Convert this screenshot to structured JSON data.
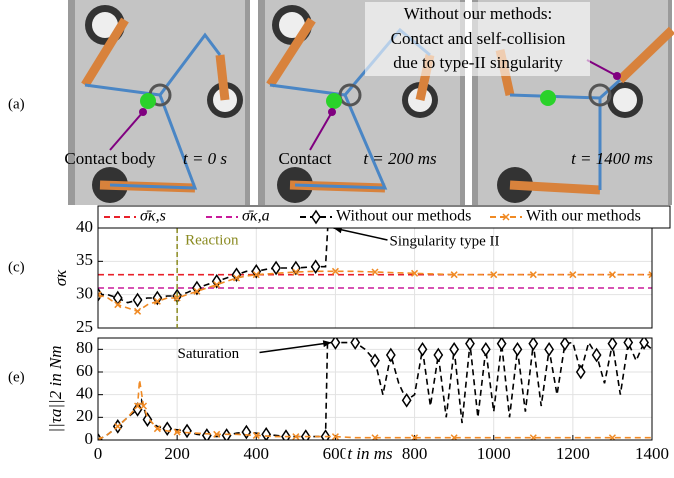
{
  "panel_labels": [
    "(a)",
    "(c)",
    "(e)"
  ],
  "photos": [
    {
      "caption": "Contact body",
      "time": "t = 0 s"
    },
    {
      "caption": "Contact",
      "time": "t = 200 ms"
    },
    {
      "caption_lines": [
        "Without our methods:",
        "Contact and self-collision",
        "due to type-II singularity"
      ],
      "time": "t = 1400 ms"
    }
  ],
  "chart_data": [
    {
      "type": "line",
      "ylabel": "σκ",
      "xlim": [
        0,
        1400
      ],
      "ylim": [
        25,
        40
      ],
      "yticks": [
        25,
        30,
        35,
        40
      ],
      "grid": true,
      "legend": "top",
      "annotations": [
        {
          "text": "Reaction",
          "x": 200
        },
        {
          "text": "Singularity type II",
          "x": 585,
          "y": 40
        }
      ],
      "series": [
        {
          "name": "σ̄κ,s",
          "color": "#e8202a",
          "style": "dashed",
          "x": [
            0,
            1400
          ],
          "values": [
            33,
            33
          ]
        },
        {
          "name": "σ̄κ,a",
          "color": "#c81a9a",
          "style": "dashed",
          "x": [
            0,
            1400
          ],
          "values": [
            31,
            31
          ]
        },
        {
          "name": "Without our methods",
          "color": "#000000",
          "style": "dashed",
          "marker": "diamond",
          "x": [
            0,
            25,
            50,
            75,
            100,
            125,
            150,
            175,
            200,
            225,
            250,
            275,
            300,
            325,
            350,
            375,
            400,
            425,
            450,
            475,
            500,
            525,
            550,
            575,
            590
          ],
          "values": [
            30,
            30,
            29.5,
            28.8,
            29.2,
            29.5,
            29.5,
            29.8,
            29.8,
            30.3,
            31,
            31.5,
            32,
            32.5,
            33,
            33.5,
            33.5,
            33.8,
            34,
            34,
            34,
            34.1,
            34.2,
            34.2,
            50
          ]
        },
        {
          "name": "With our methods",
          "color": "#f08a24",
          "style": "dashed",
          "marker": "x",
          "x": [
            0,
            25,
            50,
            75,
            100,
            125,
            150,
            175,
            200,
            225,
            250,
            275,
            300,
            325,
            350,
            375,
            400,
            450,
            500,
            550,
            600,
            650,
            700,
            750,
            800,
            850,
            900,
            950,
            1000,
            1050,
            1100,
            1150,
            1200,
            1250,
            1300,
            1350,
            1400
          ],
          "values": [
            30,
            29.5,
            28.5,
            28,
            27.5,
            28.5,
            29,
            29.5,
            29.5,
            30,
            30.5,
            31,
            31.5,
            32,
            32.5,
            32.8,
            33,
            33.2,
            33.4,
            33.5,
            33.5,
            33.5,
            33.4,
            33.3,
            33.2,
            33.1,
            33,
            33,
            33,
            33,
            33,
            33,
            33,
            33,
            33,
            33,
            33
          ]
        }
      ]
    },
    {
      "type": "line",
      "ylabel": "||τa||2 in Nm",
      "xlabel": "t in ms",
      "xlim": [
        0,
        1400
      ],
      "ylim": [
        0,
        90
      ],
      "xticks": [
        0,
        200,
        400,
        600,
        800,
        1000,
        1200,
        1400
      ],
      "yticks": [
        0,
        20,
        40,
        60,
        80
      ],
      "grid": true,
      "annotations": [
        {
          "text": "Saturation",
          "x": 580,
          "y": 86
        }
      ],
      "series": [
        {
          "color": "#000000",
          "style": "dashed",
          "marker": "diamond",
          "x": [
            0,
            25,
            50,
            75,
            100,
            110,
            125,
            150,
            175,
            200,
            225,
            250,
            275,
            300,
            325,
            350,
            375,
            400,
            425,
            450,
            475,
            500,
            525,
            550,
            575,
            580,
            600,
            625,
            650,
            675,
            700,
            720,
            740,
            760,
            780,
            800,
            820,
            840,
            860,
            880,
            900,
            920,
            940,
            960,
            980,
            1000,
            1020,
            1040,
            1060,
            1080,
            1100,
            1120,
            1140,
            1160,
            1180,
            1200,
            1220,
            1240,
            1260,
            1280,
            1300,
            1320,
            1340,
            1360,
            1380,
            1400
          ],
          "values": [
            0,
            5,
            12,
            20,
            27,
            35,
            18,
            12,
            10,
            9,
            8,
            5,
            4,
            3,
            4,
            6,
            7,
            6,
            5,
            4,
            3,
            3,
            3,
            3,
            3,
            86,
            86,
            86,
            86,
            80,
            70,
            40,
            75,
            50,
            35,
            40,
            80,
            30,
            75,
            20,
            80,
            15,
            85,
            20,
            80,
            25,
            85,
            20,
            80,
            25,
            85,
            30,
            80,
            40,
            85,
            86,
            60,
            86,
            75,
            50,
            85,
            40,
            86,
            70,
            86,
            80
          ]
        },
        {
          "color": "#f08a24",
          "style": "dashed",
          "marker": "x",
          "x": [
            0,
            25,
            50,
            75,
            100,
            105,
            115,
            125,
            150,
            175,
            200,
            250,
            300,
            350,
            400,
            450,
            500,
            550,
            600,
            650,
            700,
            750,
            800,
            850,
            900,
            1000,
            1100,
            1200,
            1300,
            1400
          ],
          "values": [
            0,
            5,
            12,
            20,
            30,
            53,
            30,
            20,
            10,
            8,
            7,
            6,
            5,
            5,
            4,
            3,
            3,
            3,
            3,
            2,
            2,
            2,
            2,
            2,
            2,
            2,
            2,
            2,
            2,
            2
          ]
        }
      ]
    }
  ]
}
